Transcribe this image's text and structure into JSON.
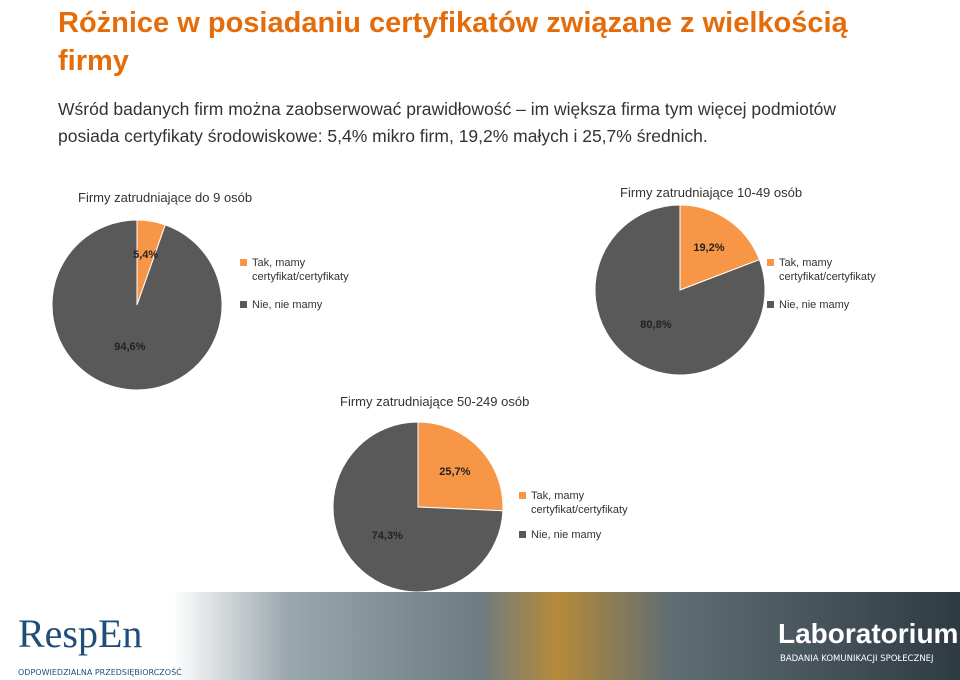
{
  "title": "Różnice w posiadaniu certyfikatów związane z wielkością firmy",
  "subtitle": "Wśród badanych firm można zaobserwować prawidłowość – im większa firma tym więcej podmiotów posiada certyfikaty środowiskowe: 5,4% mikro firm, 19,2% małych i 25,7% średnich.",
  "chart_data": [
    {
      "type": "pie",
      "title": "Firmy zatrudniające do 9 osób",
      "categories": [
        "Tak, mamy certyfikat/certyfikaty",
        "Nie, nie mamy"
      ],
      "values": [
        5.4,
        94.6
      ],
      "value_labels": [
        "5,4%",
        "94,6%"
      ],
      "colors": [
        "#f79646",
        "#595959"
      ]
    },
    {
      "type": "pie",
      "title": "Firmy zatrudniające 10-49 osób",
      "categories": [
        "Tak, mamy certyfikat/certyfikaty",
        "Nie, nie mamy"
      ],
      "values": [
        19.2,
        80.8
      ],
      "value_labels": [
        "19,2%",
        "80,8%"
      ],
      "colors": [
        "#f79646",
        "#595959"
      ]
    },
    {
      "type": "pie",
      "title": "Firmy zatrudniające 50-249 osób",
      "categories": [
        "Tak, mamy certyfikat/certyfikaty",
        "Nie, nie mamy"
      ],
      "values": [
        25.7,
        74.3
      ],
      "value_labels": [
        "25,7%",
        "74,3%"
      ],
      "colors": [
        "#f79646",
        "#595959"
      ]
    }
  ],
  "footer": {
    "left_logo": "RespEn",
    "left_tagline": "ODPOWIEDZIALNA PRZEDSIĘBIORCZOŚĆ",
    "right_logo": "Laboratorium",
    "right_tagline": "BADANIA KOMUNIKACJI SPOŁECZNEJ"
  }
}
